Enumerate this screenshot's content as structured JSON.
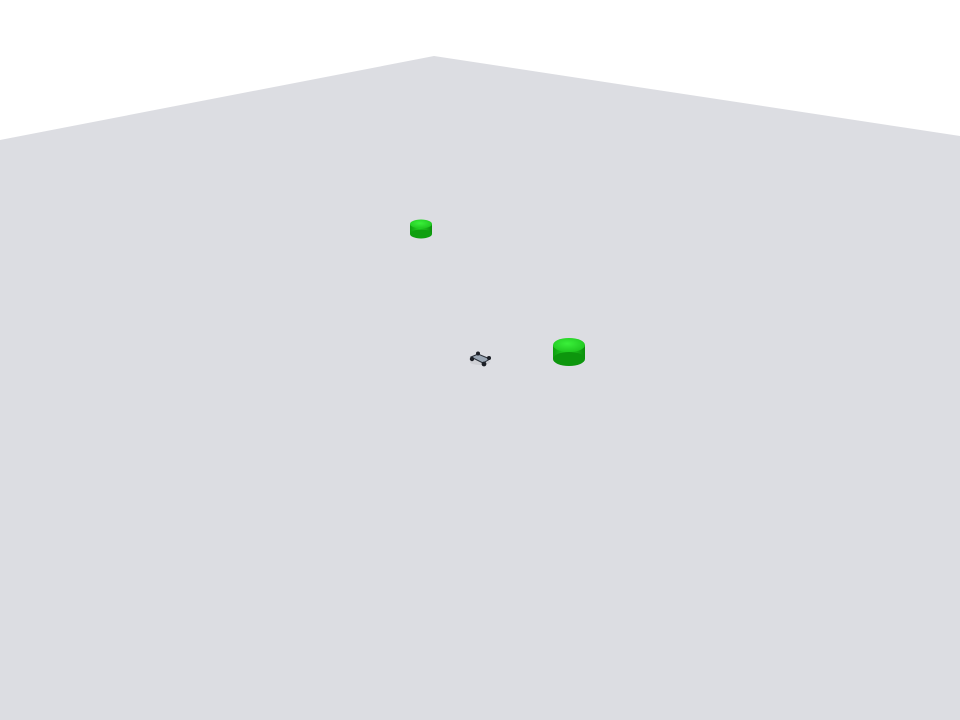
{
  "scene": {
    "sky_color": "#ffffff",
    "floor_color": "#dcdde2",
    "objects": [
      {
        "kind": "cylinder-target",
        "color": "#1fc81f"
      },
      {
        "kind": "cylinder-target",
        "color": "#1fc81f"
      },
      {
        "kind": "robot",
        "color": "#9aa6b4"
      }
    ]
  }
}
